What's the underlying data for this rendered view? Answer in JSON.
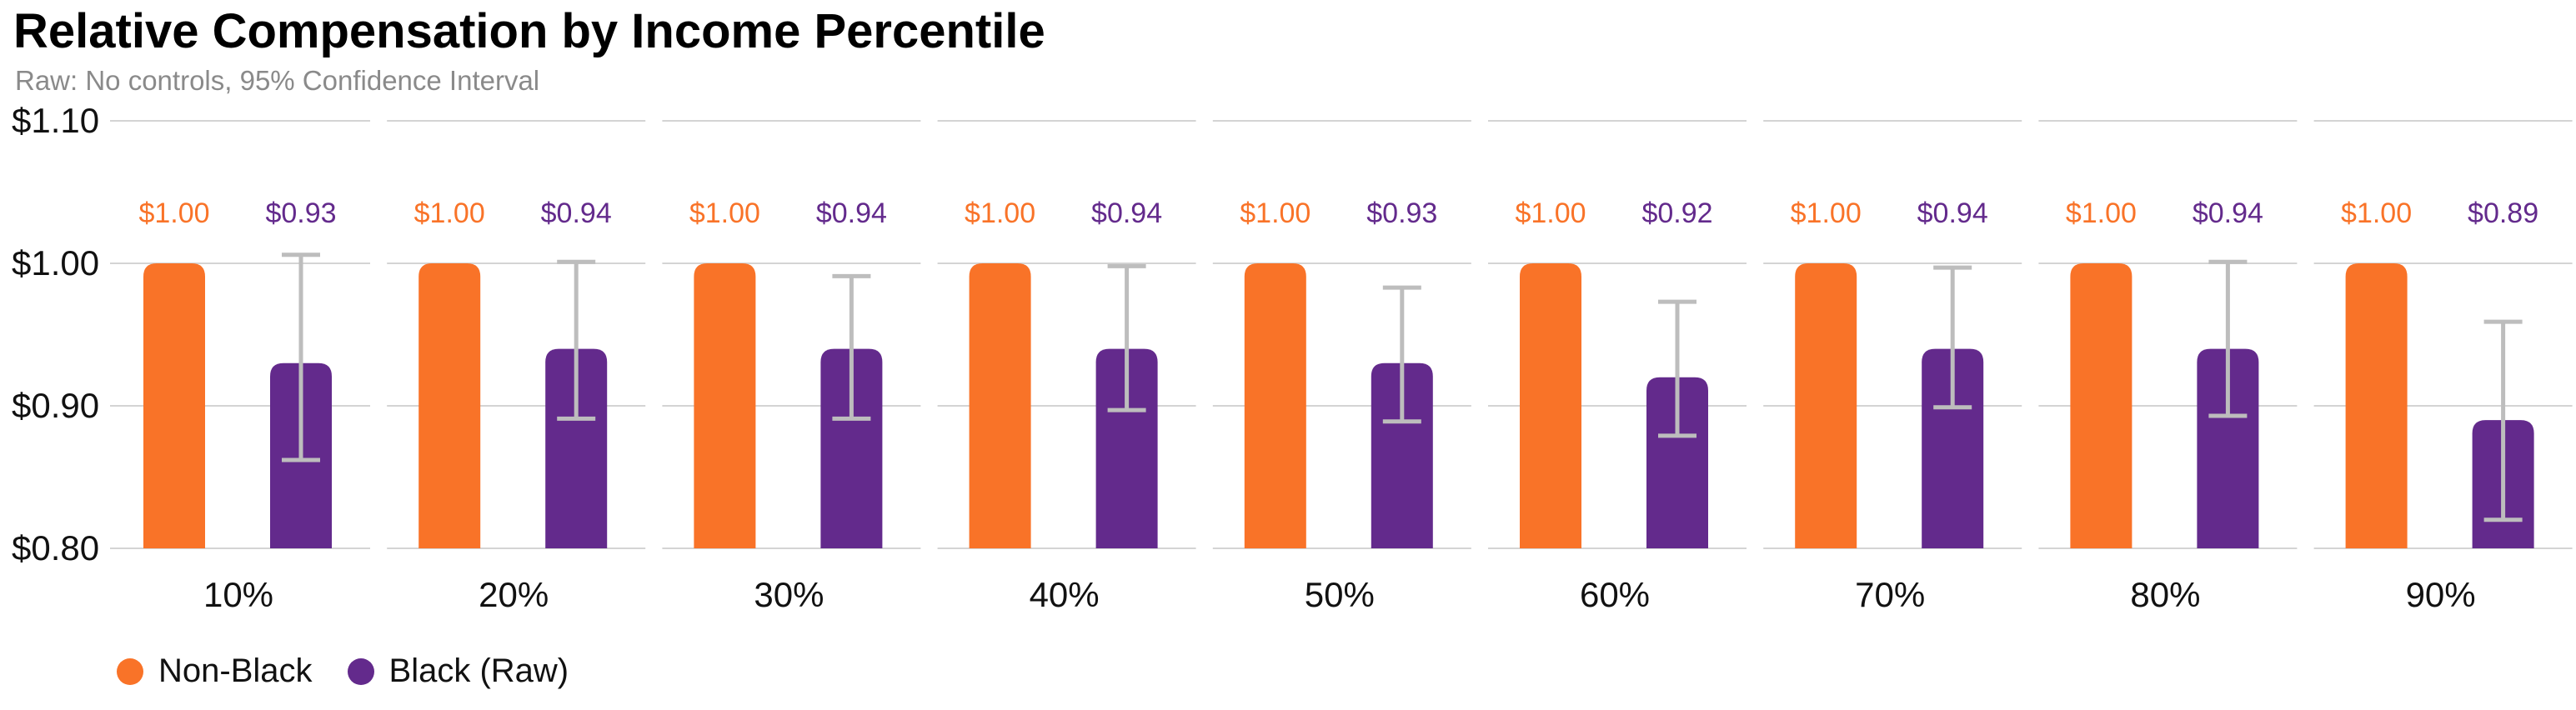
{
  "chart_data": {
    "type": "bar",
    "title": "Relative Compensation by Income Percentile",
    "subtitle": "Raw: No controls, 95% Confidence Interval",
    "categories": [
      "10%",
      "20%",
      "30%",
      "40%",
      "50%",
      "60%",
      "70%",
      "80%",
      "90%"
    ],
    "series": [
      {
        "name": "Non-Black",
        "color": "#F97328",
        "values": [
          1.0,
          1.0,
          1.0,
          1.0,
          1.0,
          1.0,
          1.0,
          1.0,
          1.0
        ],
        "labels": [
          "$1.00",
          "$1.00",
          "$1.00",
          "$1.00",
          "$1.00",
          "$1.00",
          "$1.00",
          "$1.00",
          "$1.00"
        ]
      },
      {
        "name": "Black (Raw)",
        "color": "#632A8C",
        "values": [
          0.93,
          0.94,
          0.94,
          0.94,
          0.93,
          0.92,
          0.94,
          0.94,
          0.89
        ],
        "labels": [
          "$0.93",
          "$0.94",
          "$0.94",
          "$0.94",
          "$0.93",
          "$0.92",
          "$0.94",
          "$0.94",
          "$0.89"
        ],
        "ci_low": [
          0.862,
          0.891,
          0.891,
          0.897,
          0.889,
          0.879,
          0.899,
          0.893,
          0.82
        ],
        "ci_high": [
          1.006,
          1.001,
          0.991,
          0.998,
          0.983,
          0.973,
          0.997,
          1.001,
          0.959
        ]
      }
    ],
    "ylim": [
      0.8,
      1.1
    ],
    "y_ticks": [
      {
        "value": 1.1,
        "label": "$1.10"
      },
      {
        "value": 1.0,
        "label": "$1.00"
      },
      {
        "value": 0.9,
        "label": "$0.90"
      },
      {
        "value": 0.8,
        "label": "$0.80"
      }
    ],
    "grid": true,
    "error_bar_color": "#BDBDBD",
    "label_color_by_series": true,
    "legend_position": "bottom-left"
  }
}
